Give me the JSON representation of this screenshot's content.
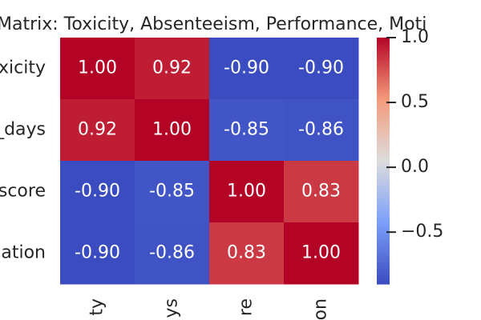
{
  "chart_data": {
    "type": "heatmap",
    "title": "Matrix: Toxicity, Absenteeism, Performance, Moti",
    "row_labels": [
      "xicity",
      "_days",
      "score",
      "ation"
    ],
    "col_labels": [
      "ty",
      "ys",
      "re",
      "on"
    ],
    "values": [
      [
        1.0,
        0.92,
        -0.9,
        -0.9
      ],
      [
        0.92,
        1.0,
        -0.85,
        -0.86
      ],
      [
        -0.9,
        -0.85,
        1.0,
        0.83
      ],
      [
        -0.9,
        -0.86,
        0.83,
        1.0
      ]
    ],
    "value_labels": [
      [
        "1.00",
        "0.92",
        "-0.90",
        "-0.90"
      ],
      [
        "0.92",
        "1.00",
        "-0.85",
        "-0.86"
      ],
      [
        "-0.90",
        "-0.85",
        "1.00",
        "0.83"
      ],
      [
        "-0.90",
        "-0.86",
        "0.83",
        "1.00"
      ]
    ],
    "clim": [
      -0.9,
      1.0
    ],
    "cticks": [
      {
        "value": 1.0,
        "label": "1.0"
      },
      {
        "value": 0.5,
        "label": "0.5"
      },
      {
        "value": 0.0,
        "label": "0.0"
      },
      {
        "value": -0.5,
        "label": "−0.5"
      }
    ],
    "colormap": [
      "#3b4cc0",
      "#7b9ff9",
      "#dddddd",
      "#f49a7b",
      "#b40426"
    ]
  }
}
